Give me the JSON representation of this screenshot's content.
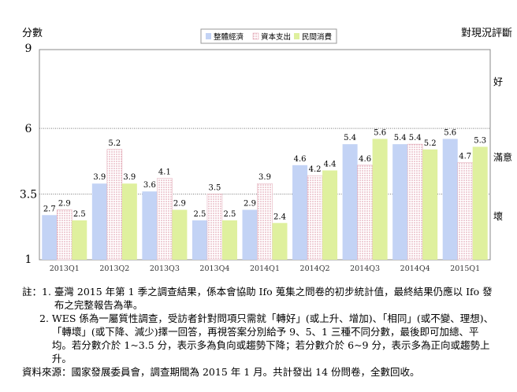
{
  "chart_data": {
    "type": "bar",
    "ylabel": "分數",
    "right_title": "對現況評斷",
    "right_labels": {
      "good": "好",
      "ok": "滿意",
      "bad": "壞"
    },
    "ylim": [
      1,
      9
    ],
    "y_ticks": [
      "9",
      "6",
      "3.5",
      "1"
    ],
    "y_tick_values": [
      9,
      6,
      3.5,
      1
    ],
    "grid_lines": [
      6,
      3.5
    ],
    "legend_position": "top-center",
    "categories": [
      "2013Q1",
      "2013Q2",
      "2013Q3",
      "2013Q4",
      "2014Q1",
      "2014Q2",
      "2014Q3",
      "2014Q4",
      "2015Q1"
    ],
    "series": [
      {
        "name": "整體經濟",
        "color": "#c3d3f5",
        "pattern": "solid",
        "values": [
          2.7,
          3.9,
          3.6,
          2.5,
          2.9,
          4.6,
          5.4,
          5.4,
          5.6
        ]
      },
      {
        "name": "資本支出",
        "color": "#f2b8c6",
        "pattern": "dots",
        "values": [
          2.9,
          5.2,
          4.1,
          3.5,
          3.9,
          4.2,
          4.6,
          5.4,
          4.7
        ]
      },
      {
        "name": "民間消費",
        "color": "#dff09e",
        "pattern": "solid",
        "values": [
          2.5,
          3.9,
          2.9,
          2.5,
          2.4,
          4.4,
          5.6,
          5.2,
          5.3
        ]
      }
    ]
  },
  "notes": {
    "n1_prefix": "註：1. ",
    "n1": "臺灣 2015 年第 1 季之調查結果，係本會協助 Ifo 蒐集之問卷的初步統計值，最終結果仍應以 Ifo 發布之完整報告為準。",
    "n2_prefix": "2. ",
    "n2": "WES 係為一屬質性調查，受訪者針對問項只需就「轉好」(或上升、增加)、「相同」(或不變、理想)、「轉壞」(或下降、減少)擇一回答，再視答案分別給予 9、5、1 三種不同分數，最後即可加總、平均。若分數介於 1~3.5 分，表示多為負向或趨勢下降；若分數介於 6~9 分，表示多為正向或趨勢上升。",
    "source": "資料來源：國家發展委員會，調查期間為 2015 年 1 月。共計發出 14 份問卷，全數回收。"
  }
}
